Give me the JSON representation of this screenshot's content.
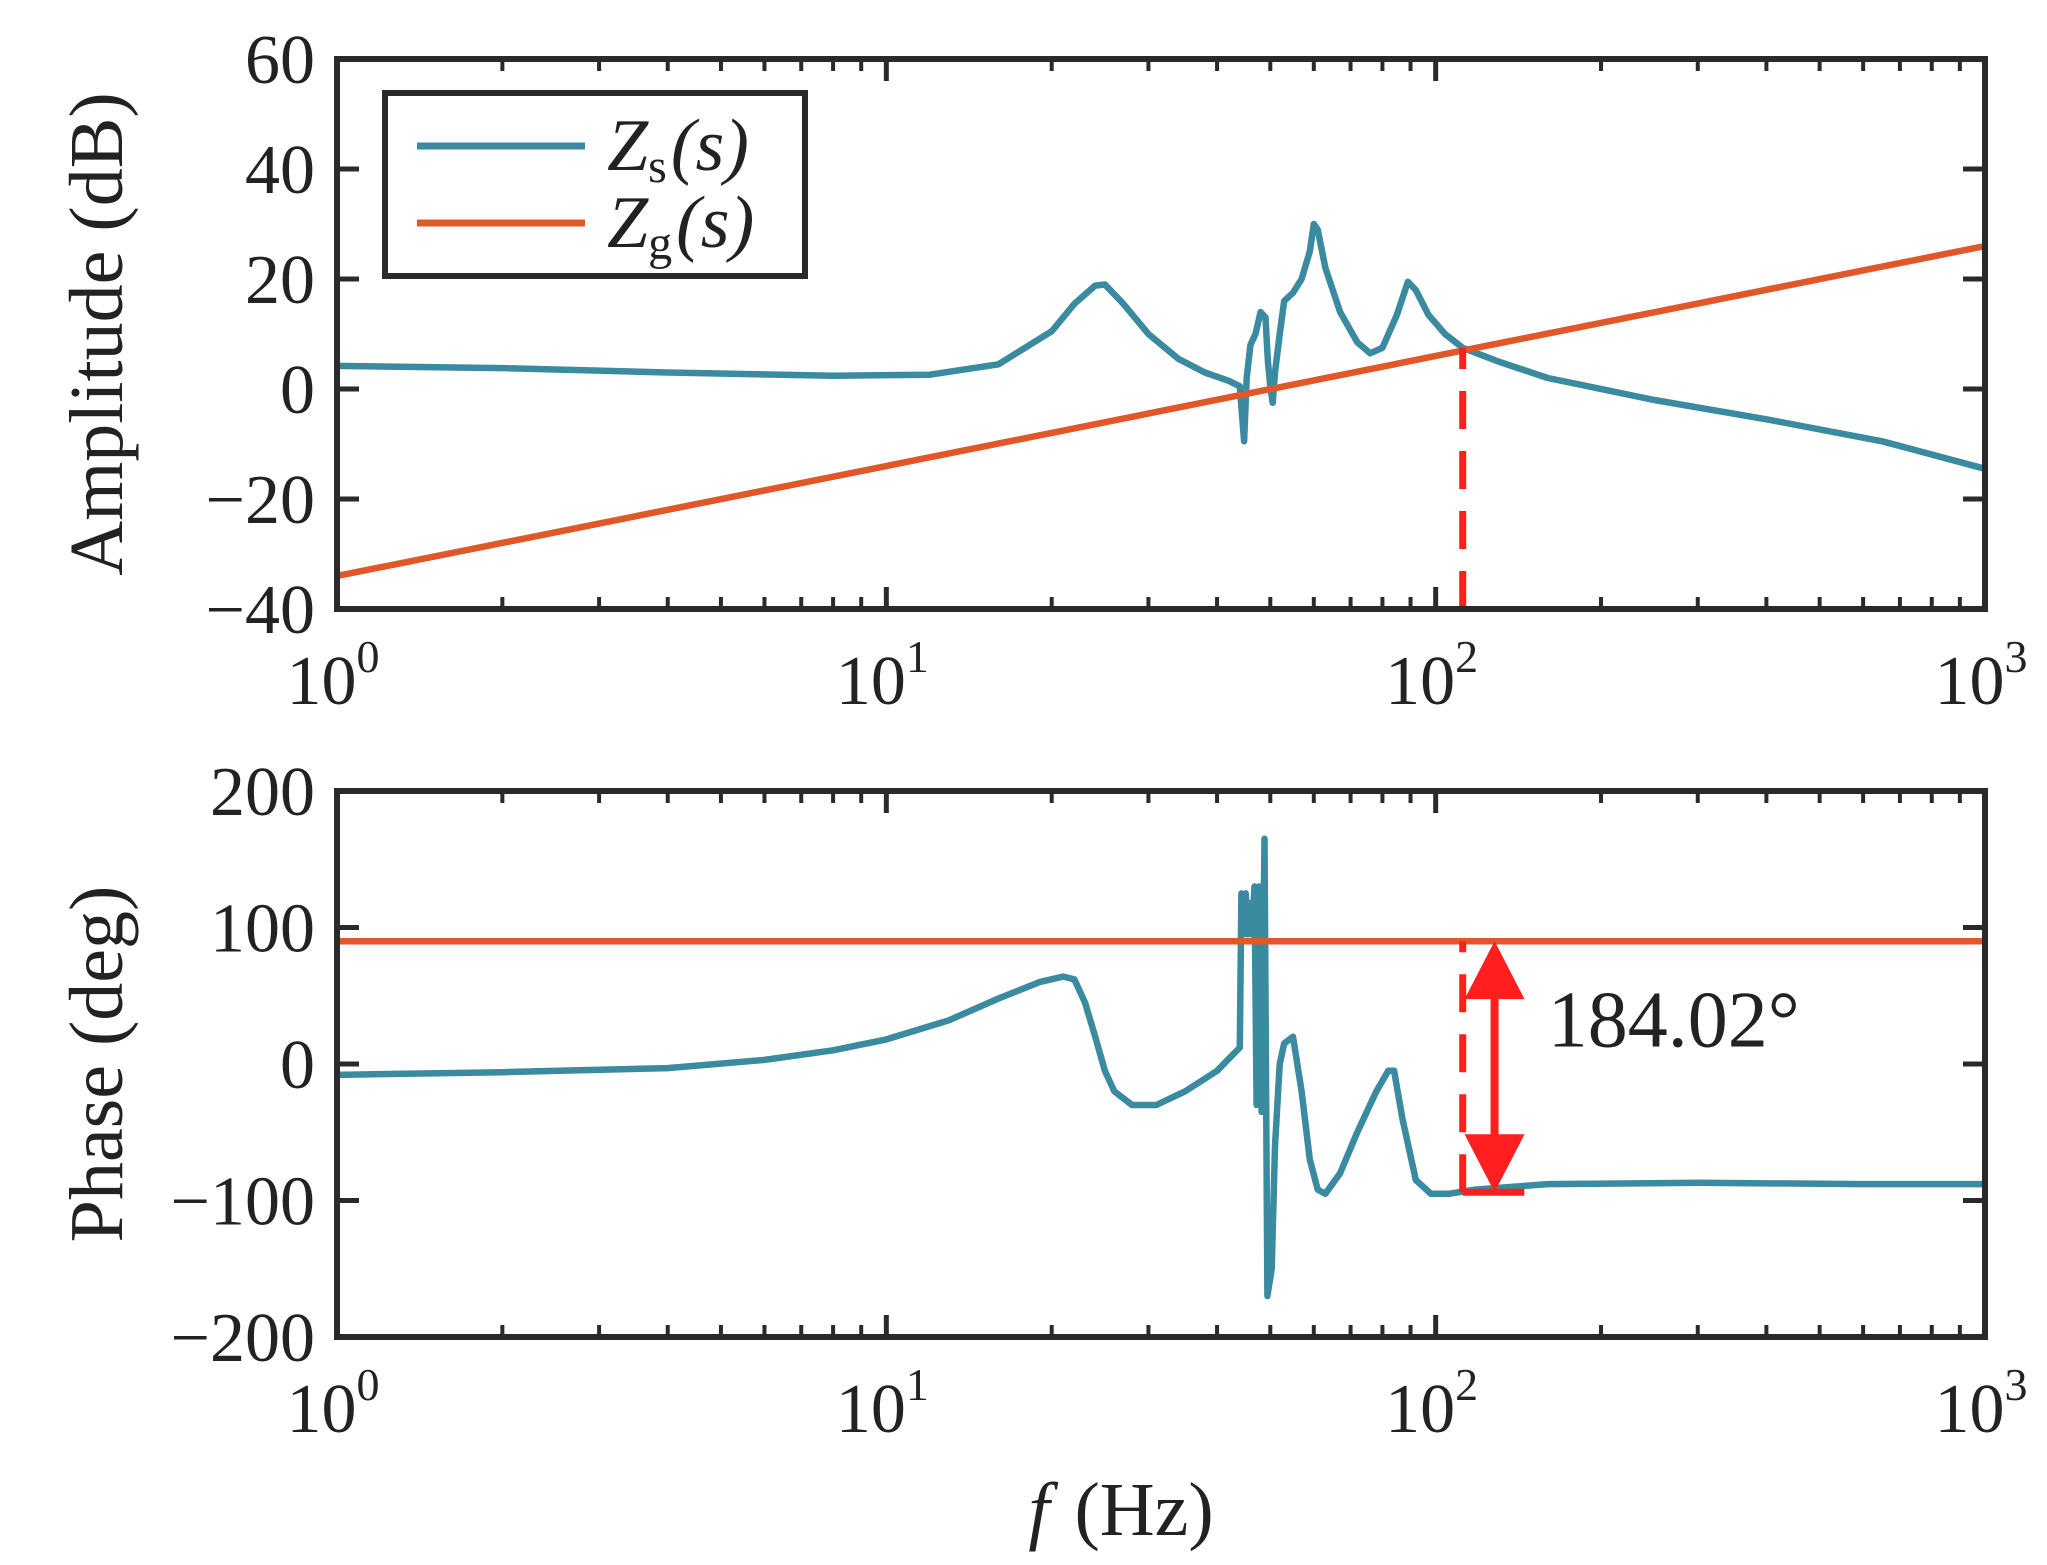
{
  "chart_data": [
    {
      "type": "line",
      "panel": "amplitude",
      "xscale": "log",
      "xlim": [
        1,
        1000
      ],
      "ylim": [
        -40,
        60
      ],
      "yticks": [
        -40,
        -20,
        0,
        20,
        40,
        60
      ],
      "ytick_labels": [
        "−40",
        "−20",
        "0",
        "20",
        "40",
        "60"
      ],
      "xticks": [
        {
          "base": "10",
          "exp": "0"
        },
        {
          "base": "10",
          "exp": "1"
        },
        {
          "base": "10",
          "exp": "2"
        },
        {
          "base": "10",
          "exp": "3"
        }
      ],
      "ylabel": "Amplitude (dB)",
      "legend": {
        "position": "top-left",
        "entries": [
          {
            "main": "Z",
            "sub": "s",
            "arg": "(s)",
            "color": "#3a8aa0"
          },
          {
            "main": "Z",
            "sub": "g",
            "arg": "(s)",
            "color": "#e0582a"
          }
        ]
      },
      "series": [
        {
          "name": "Zs(s)",
          "color": "#3a8aa0",
          "points": [
            [
              1,
              4.2
            ],
            [
              2,
              3.8
            ],
            [
              4,
              3.0
            ],
            [
              8,
              2.4
            ],
            [
              12,
              2.6
            ],
            [
              16,
              4.5
            ],
            [
              20,
              10.5
            ],
            [
              22,
              15.5
            ],
            [
              24,
              18.8
            ],
            [
              25,
              19.0
            ],
            [
              27,
              15.5
            ],
            [
              30,
              10.0
            ],
            [
              34,
              5.5
            ],
            [
              38,
              3.0
            ],
            [
              42,
              1.5
            ],
            [
              44,
              0.5
            ],
            [
              44.8,
              -9.5
            ],
            [
              45.3,
              2
            ],
            [
              46,
              8
            ],
            [
              47,
              10
            ],
            [
              48,
              14
            ],
            [
              49,
              13
            ],
            [
              49.5,
              5
            ],
            [
              50,
              0.5
            ],
            [
              50.5,
              -2.5
            ],
            [
              51,
              3
            ],
            [
              52,
              10
            ],
            [
              53,
              16
            ],
            [
              55,
              17.5
            ],
            [
              57,
              20
            ],
            [
              59,
              25
            ],
            [
              60,
              30
            ],
            [
              61,
              29
            ],
            [
              63,
              22
            ],
            [
              67,
              14
            ],
            [
              72,
              8.5
            ],
            [
              76,
              6.5
            ],
            [
              80,
              7.5
            ],
            [
              85,
              13.5
            ],
            [
              89,
              19.5
            ],
            [
              92,
              18
            ],
            [
              97,
              13.5
            ],
            [
              104,
              10
            ],
            [
              112,
              7.5
            ],
            [
              130,
              5
            ],
            [
              160,
              2
            ],
            [
              250,
              -2
            ],
            [
              400,
              -5.5
            ],
            [
              650,
              -9.5
            ],
            [
              1000,
              -14.5
            ]
          ]
        },
        {
          "name": "Zg(s)",
          "color": "#e0582a",
          "points": [
            [
              1,
              -34
            ],
            [
              1000,
              26
            ]
          ]
        }
      ],
      "annotations": [
        {
          "type": "dashed-vline",
          "x": 112,
          "y_from": -40,
          "y_to": 7.5,
          "color": "#ff1f1f"
        }
      ]
    },
    {
      "type": "line",
      "panel": "phase",
      "xscale": "log",
      "xlim": [
        1,
        1000
      ],
      "ylim": [
        -200,
        200
      ],
      "yticks": [
        -200,
        -100,
        0,
        100,
        200
      ],
      "ytick_labels": [
        "−200",
        "−100",
        "0",
        "100",
        "200"
      ],
      "xticks": [
        {
          "base": "10",
          "exp": "0"
        },
        {
          "base": "10",
          "exp": "1"
        },
        {
          "base": "10",
          "exp": "2"
        },
        {
          "base": "10",
          "exp": "3"
        }
      ],
      "ylabel": "Phase (deg)",
      "xlabel": {
        "var": "f",
        "unit": "(Hz)"
      },
      "series": [
        {
          "name": "Zs(s)",
          "color": "#3a8aa0",
          "points": [
            [
              1,
              -8
            ],
            [
              2,
              -6
            ],
            [
              4,
              -3
            ],
            [
              6,
              3
            ],
            [
              8,
              10
            ],
            [
              10,
              18
            ],
            [
              13,
              32
            ],
            [
              16,
              48
            ],
            [
              19,
              60
            ],
            [
              21,
              64
            ],
            [
              22,
              62
            ],
            [
              23,
              45
            ],
            [
              24,
              20
            ],
            [
              25,
              -5
            ],
            [
              26,
              -20
            ],
            [
              28,
              -30
            ],
            [
              31,
              -30
            ],
            [
              35,
              -20
            ],
            [
              40,
              -5
            ],
            [
              43,
              8
            ],
            [
              44,
              12
            ],
            [
              44.3,
              125
            ],
            [
              44.7,
              95
            ],
            [
              45.1,
              125
            ],
            [
              45.5,
              95
            ],
            [
              45.9,
              118
            ],
            [
              46.3,
              95
            ],
            [
              46.8,
              130
            ],
            [
              47.2,
              -30
            ],
            [
              47.7,
              130
            ],
            [
              48.2,
              -35
            ],
            [
              48.8,
              165
            ],
            [
              49.4,
              -170
            ],
            [
              50.3,
              -150
            ],
            [
              51,
              -60
            ],
            [
              52,
              0
            ],
            [
              53,
              15
            ],
            [
              55,
              20
            ],
            [
              57,
              -20
            ],
            [
              59,
              -70
            ],
            [
              61,
              -92
            ],
            [
              63,
              -95
            ],
            [
              67,
              -80
            ],
            [
              72,
              -50
            ],
            [
              78,
              -20
            ],
            [
              82,
              -5
            ],
            [
              84,
              -5
            ],
            [
              87,
              -40
            ],
            [
              92,
              -85
            ],
            [
              98,
              -95
            ],
            [
              106,
              -95
            ],
            [
              118,
              -92
            ],
            [
              160,
              -88
            ],
            [
              300,
              -87
            ],
            [
              600,
              -88
            ],
            [
              1000,
              -88
            ]
          ]
        },
        {
          "name": "Zg(s)",
          "color": "#e0582a",
          "points": [
            [
              1,
              90
            ],
            [
              1000,
              90
            ]
          ]
        }
      ],
      "annotations": [
        {
          "type": "dashed-vline",
          "x": 112,
          "y_from": -94,
          "y_to": 90,
          "color": "#ff1f1f"
        },
        {
          "type": "double-arrow",
          "x": 128,
          "y_from": -94,
          "y_to": 90,
          "color": "#ff1f1f"
        },
        {
          "type": "hline-segment",
          "x_from": 112,
          "x_to": 145,
          "y": -94,
          "color": "#ff1f1f"
        },
        {
          "type": "label",
          "text": "184.02°",
          "x": 160,
          "y": 32
        }
      ]
    }
  ]
}
